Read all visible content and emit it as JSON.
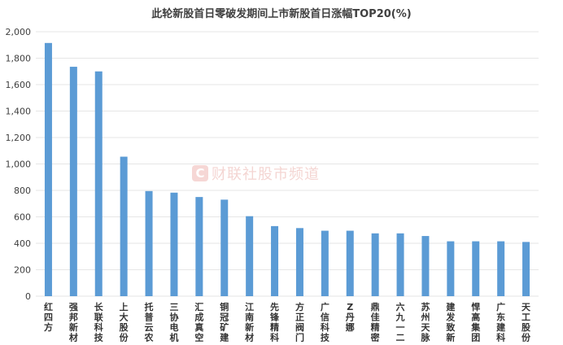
{
  "chart_data": {
    "type": "bar",
    "title": "此轮新股首日零破发期间上市新股首日涨幅TOP20(%)",
    "xlabel": "",
    "ylabel": "",
    "categories": [
      "红四方",
      "强邦新材",
      "长联科技",
      "上大股份",
      "托普云农",
      "三协电机",
      "汇成真空",
      "铜冠矿建",
      "江南新材",
      "先锋精科",
      "方正阀门",
      "广信科技",
      "Z丹娜",
      "鼎佳精密",
      "六九一二",
      "苏州天脉",
      "建发致新",
      "悍高集团",
      "广东建科",
      "天工股份"
    ],
    "values": [
      1915,
      1735,
      1700,
      1055,
      795,
      783,
      750,
      730,
      605,
      530,
      515,
      495,
      495,
      475,
      475,
      455,
      415,
      415,
      415,
      410
    ],
    "ylim": [
      0,
      2000
    ],
    "yticks": [
      "0",
      "200",
      "400",
      "600",
      "800",
      "1,000",
      "1,200",
      "1,400",
      "1,600",
      "1,800",
      "2,000"
    ],
    "bar_color": "#5b9bd5",
    "grid": true,
    "legend": "none"
  },
  "watermark": {
    "logo": "C",
    "text": "财联社股市频道"
  }
}
